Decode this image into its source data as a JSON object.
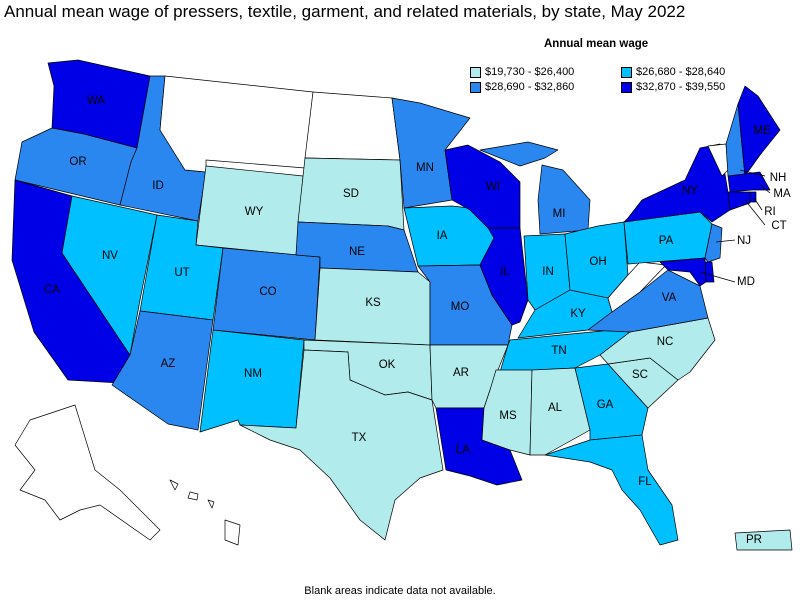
{
  "title": "Annual mean wage of pressers, textile, garment, and related materials, by state, May 2022",
  "legend": {
    "title": "Annual mean wage",
    "bins": [
      {
        "label": "$19,730 - $26,400",
        "color": "#b2ebeb"
      },
      {
        "label": "$26,680 - $28,640",
        "color": "#00c0ff"
      },
      {
        "label": "$28,690 - $32,860",
        "color": "#2a87f0"
      },
      {
        "label": "$32,870 - $39,550",
        "color": "#0000e6"
      }
    ]
  },
  "no_data_color": "#ffffff",
  "footnote": "Blank areas indicate data not available.",
  "states": {
    "WA": {
      "label": "WA",
      "bin": 3
    },
    "OR": {
      "label": "OR",
      "bin": 2
    },
    "CA": {
      "label": "CA",
      "bin": 3
    },
    "NV": {
      "label": "NV",
      "bin": 1
    },
    "ID": {
      "label": "ID",
      "bin": 2
    },
    "MT": {
      "label": "",
      "bin": null
    },
    "WY": {
      "label": "WY",
      "bin": 0
    },
    "UT": {
      "label": "UT",
      "bin": 1
    },
    "AZ": {
      "label": "AZ",
      "bin": 2
    },
    "CO": {
      "label": "CO",
      "bin": 2
    },
    "NM": {
      "label": "NM",
      "bin": 1
    },
    "ND": {
      "label": "",
      "bin": null
    },
    "SD": {
      "label": "SD",
      "bin": 0
    },
    "NE": {
      "label": "NE",
      "bin": 2
    },
    "KS": {
      "label": "KS",
      "bin": 0
    },
    "OK": {
      "label": "OK",
      "bin": 0
    },
    "TX": {
      "label": "TX",
      "bin": 0
    },
    "MN": {
      "label": "MN",
      "bin": 2
    },
    "IA": {
      "label": "IA",
      "bin": 1
    },
    "MO": {
      "label": "MO",
      "bin": 2
    },
    "AR": {
      "label": "AR",
      "bin": 0
    },
    "LA": {
      "label": "LA",
      "bin": 3
    },
    "WI": {
      "label": "WI",
      "bin": 3
    },
    "IL": {
      "label": "IL",
      "bin": 3
    },
    "MI": {
      "label": "MI",
      "bin": 2
    },
    "IN": {
      "label": "IN",
      "bin": 1
    },
    "OH": {
      "label": "OH",
      "bin": 1
    },
    "KY": {
      "label": "KY",
      "bin": 1
    },
    "TN": {
      "label": "TN",
      "bin": 1
    },
    "MS": {
      "label": "MS",
      "bin": 0
    },
    "AL": {
      "label": "AL",
      "bin": 0
    },
    "GA": {
      "label": "GA",
      "bin": 1
    },
    "FL": {
      "label": "FL",
      "bin": 1
    },
    "SC": {
      "label": "SC",
      "bin": 0
    },
    "NC": {
      "label": "NC",
      "bin": 0
    },
    "VA": {
      "label": "VA",
      "bin": 2
    },
    "WV": {
      "label": "",
      "bin": null
    },
    "PA": {
      "label": "PA",
      "bin": 1
    },
    "NY": {
      "label": "NY",
      "bin": 3
    },
    "VT": {
      "label": "",
      "bin": null
    },
    "NH": {
      "label": "NH",
      "bin": 2
    },
    "ME": {
      "label": "ME",
      "bin": 3
    },
    "MA": {
      "label": "MA",
      "bin": 3
    },
    "CT": {
      "label": "CT",
      "bin": 3
    },
    "RI": {
      "label": "RI",
      "bin": 3
    },
    "NJ": {
      "label": "NJ",
      "bin": 2
    },
    "DE": {
      "label": "",
      "bin": 3
    },
    "MD": {
      "label": "MD",
      "bin": 3
    },
    "AK": {
      "label": "",
      "bin": null
    },
    "HI": {
      "label": "",
      "bin": null
    },
    "PR": {
      "label": "PR",
      "bin": 0
    }
  }
}
